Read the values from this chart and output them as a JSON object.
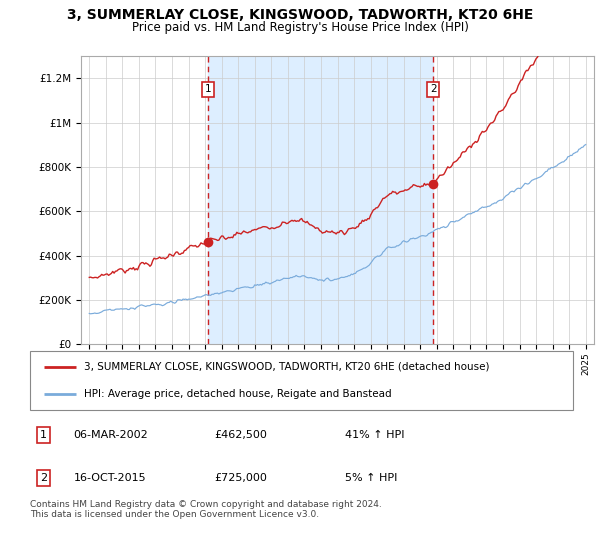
{
  "title": "3, SUMMERLAY CLOSE, KINGSWOOD, TADWORTH, KT20 6HE",
  "subtitle": "Price paid vs. HM Land Registry's House Price Index (HPI)",
  "legend_line1": "3, SUMMERLAY CLOSE, KINGSWOOD, TADWORTH, KT20 6HE (detached house)",
  "legend_line2": "HPI: Average price, detached house, Reigate and Banstead",
  "sale1_date": "06-MAR-2002",
  "sale1_price": "£462,500",
  "sale1_pct": "41% ↑ HPI",
  "sale2_date": "16-OCT-2015",
  "sale2_price": "£725,000",
  "sale2_pct": "5% ↑ HPI",
  "footer": "Contains HM Land Registry data © Crown copyright and database right 2024.\nThis data is licensed under the Open Government Licence v3.0.",
  "red_color": "#cc2222",
  "blue_color": "#7aabdb",
  "bg_color": "#ddeeff",
  "sale1_year": 2002.17,
  "sale2_year": 2015.79,
  "sale1_price_val": 462500,
  "sale2_price_val": 725000
}
